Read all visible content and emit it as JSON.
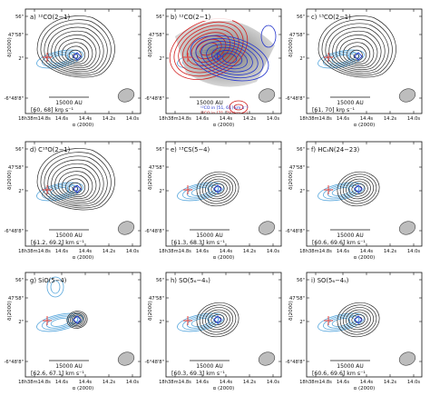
{
  "figure": {
    "y_ticks": [
      "56\"",
      "47'58\"",
      "2\"",
      "-6°48'8\""
    ],
    "x_ticks": [
      "18h38m14.8s",
      "14.6s",
      "14.4s",
      "14.2s",
      "14.0s"
    ],
    "x_axis_label": "α (2000)",
    "y_axis_label": "δ(2000)",
    "scale_bar_label": "15000 AU",
    "panels": [
      {
        "id": "a",
        "title": "a) ¹²CO(2−1)",
        "range": "[60, 68] km s⁻¹",
        "type": "std"
      },
      {
        "id": "b",
        "title": "b) ¹²CO(2−1)",
        "range": "",
        "type": "outflow",
        "legend": [
          "¹²CO in [51, 61] km s⁻¹",
          "¹²CO in [71, 78] km s⁻¹"
        ]
      },
      {
        "id": "c",
        "title": "c) ¹³CO(2−1)",
        "range": "[61, 70] km s⁻¹",
        "type": "std"
      },
      {
        "id": "d",
        "title": "d) C¹⁸O(2−1)",
        "range": "[61.2, 69.2] km s⁻¹",
        "type": "std"
      },
      {
        "id": "e",
        "title": "e) ¹³CS(5−4)",
        "range": "[61.3, 68.3] km s⁻¹",
        "type": "compact"
      },
      {
        "id": "f",
        "title": "f) HC₃N(24−23)",
        "range": "[60.6, 69.6] km s⁻¹",
        "type": "compact"
      },
      {
        "id": "g",
        "title": "g) SiO(5−4)",
        "range": "[62.6, 67.1] km s⁻¹",
        "type": "tiny"
      },
      {
        "id": "h",
        "title": "h) SO(5₆−4₅)",
        "range": "[60.3, 69.3] km s⁻¹",
        "type": "compact"
      },
      {
        "id": "i",
        "title": "i) SO(5₆−4₅)",
        "range": "[60.6, 69.6] km s⁻¹",
        "type": "compact"
      }
    ],
    "colors": {
      "contour": "#2b2b2b",
      "continuum": "#5aa8dd",
      "cross": "#e8423a",
      "source": "#2a3fd0",
      "beam": "#bdbdbd",
      "blue_outflow": "#2233cc",
      "red_outflow": "#d21e1e"
    }
  }
}
